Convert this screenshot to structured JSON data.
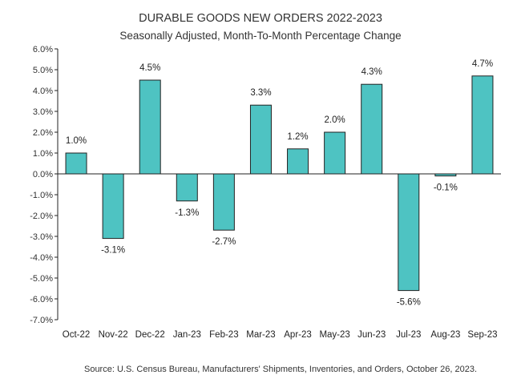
{
  "chart_data": {
    "type": "bar",
    "title": "DURABLE GOODS NEW ORDERS 2022-2023",
    "subtitle": "Seasonally Adjusted,  Month-To-Month Percentage Change",
    "categories": [
      "Oct-22",
      "Nov-22",
      "Dec-22",
      "Jan-23",
      "Feb-23",
      "Mar-23",
      "Apr-23",
      "May-23",
      "Jun-23",
      "Jul-23",
      "Aug-23",
      "Sep-23"
    ],
    "values": [
      1.0,
      -3.1,
      4.5,
      -1.3,
      -2.7,
      3.3,
      1.2,
      2.0,
      4.3,
      -5.6,
      -0.1,
      4.7
    ],
    "data_labels": [
      "1.0%",
      "-3.1%",
      "4.5%",
      "-1.3%",
      "-2.7%",
      "3.3%",
      "1.2%",
      "2.0%",
      "4.3%",
      "-5.6%",
      "-0.1%",
      "4.7%"
    ],
    "ylim": [
      -7.0,
      6.0
    ],
    "yticks": [
      6.0,
      5.0,
      4.0,
      3.0,
      2.0,
      1.0,
      0.0,
      -1.0,
      -2.0,
      -3.0,
      -4.0,
      -5.0,
      -6.0,
      -7.0
    ],
    "ytick_labels": [
      "6.0%",
      "5.0%",
      "4.0%",
      "3.0%",
      "2.0%",
      "1.0%",
      "0.0%",
      "-1.0%",
      "-2.0%",
      "-3.0%",
      "-4.0%",
      "-5.0%",
      "-6.0%",
      "-7.0%"
    ],
    "grid": false,
    "colors": {
      "bar": "#4ec3c2",
      "outline": "#222222"
    },
    "source": "Source: U.S. Census Bureau, Manufacturers' Shipments, Inventories, and Orders, October 26, 2023."
  }
}
